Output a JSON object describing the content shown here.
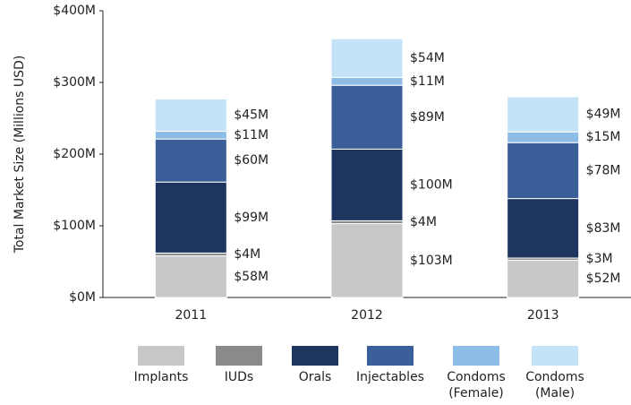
{
  "chart_data": {
    "type": "stacked_bar",
    "y_label": "Total Market Size (Millions USD)",
    "categories": [
      "2011",
      "2012",
      "2013"
    ],
    "ylim": [
      0,
      400
    ],
    "yticks": [
      {
        "value": 0,
        "label": "$0M"
      },
      {
        "value": 100,
        "label": "$100M"
      },
      {
        "value": 200,
        "label": "$200M"
      },
      {
        "value": 300,
        "label": "$300M"
      },
      {
        "value": 400,
        "label": "$400M"
      }
    ],
    "series": [
      {
        "name": "Implants",
        "color": "#c8c8c8",
        "values": [
          58,
          103,
          52
        ],
        "value_labels": [
          "$58M",
          "$103M",
          "$52M"
        ]
      },
      {
        "name": "IUDs",
        "color": "#8a8a8a",
        "values": [
          4,
          4,
          3
        ],
        "value_labels": [
          "$4M",
          "$4M",
          "$3M"
        ]
      },
      {
        "name": "Orals",
        "color": "#1e3560",
        "values": [
          99,
          100,
          83
        ],
        "value_labels": [
          "$99M",
          "$100M",
          "$83M"
        ]
      },
      {
        "name": "Injectables",
        "color": "#3a5e98",
        "values": [
          60,
          89,
          78
        ],
        "value_labels": [
          "$60M",
          "$89M",
          "$78M"
        ]
      },
      {
        "name": "Condoms (Female)",
        "color": "#8dbde6",
        "values": [
          11,
          11,
          15
        ],
        "value_labels": [
          "$11M",
          "$11M",
          "$15M"
        ]
      },
      {
        "name": "Condoms (Male)",
        "color": "#c5e3f6",
        "values": [
          45,
          54,
          49
        ],
        "value_labels": [
          "$45M",
          "$54M",
          "$49M"
        ]
      }
    ]
  }
}
